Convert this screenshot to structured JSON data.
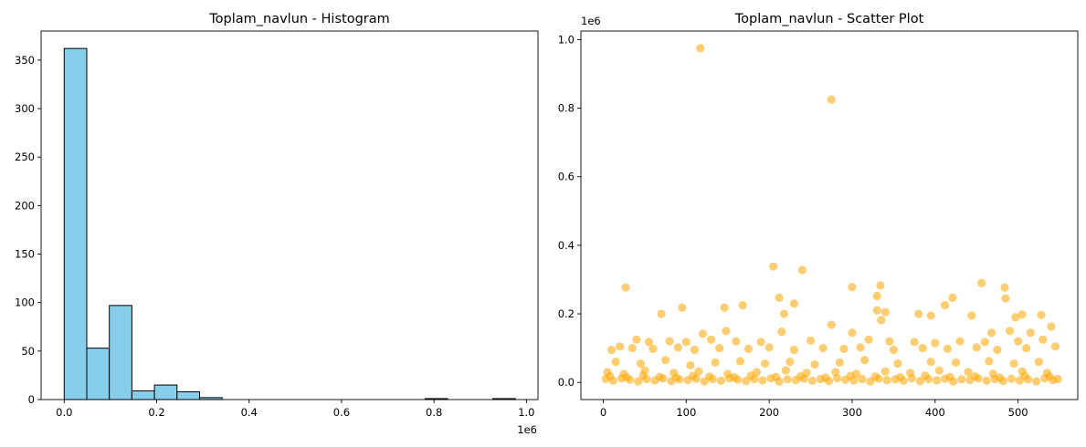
{
  "chart_data": [
    {
      "type": "bar",
      "title": "Toplam_navlun - Histogram",
      "xlabel": "",
      "ylabel": "",
      "x_offset_label": "1e6",
      "bar_color": "#87ceeb",
      "edge_color": "#000000",
      "bin_start": 0.0,
      "bin_width": 0.0488,
      "counts": [
        362,
        53,
        97,
        9,
        15,
        8,
        2,
        0,
        0,
        0,
        0,
        0,
        0,
        0,
        0,
        0,
        1,
        0,
        0,
        1
      ],
      "xlim": [
        -0.05,
        1.025
      ],
      "ylim": [
        0,
        380
      ],
      "xticks": [
        0.0,
        0.2,
        0.4,
        0.6,
        0.8,
        1.0
      ],
      "xtick_labels": [
        "0.0",
        "0.2",
        "0.4",
        "0.6",
        "0.8",
        "1.0"
      ],
      "yticks": [
        0,
        50,
        100,
        150,
        200,
        250,
        300,
        350
      ],
      "ytick_labels": [
        "0",
        "50",
        "100",
        "150",
        "200",
        "250",
        "300",
        "350"
      ],
      "grid": false
    },
    {
      "type": "scatter",
      "title": "Toplam_navlun - Scatter Plot",
      "xlabel": "",
      "ylabel": "",
      "y_offset_label": "1e6",
      "color": "#ffa500",
      "alpha": 0.55,
      "xlim": [
        -27,
        572
      ],
      "ylim": [
        -0.05,
        1.025
      ],
      "xticks": [
        0,
        100,
        200,
        300,
        400,
        500
      ],
      "xtick_labels": [
        "0",
        "100",
        "200",
        "300",
        "400",
        "500"
      ],
      "yticks": [
        0.0,
        0.2,
        0.4,
        0.6,
        0.8,
        1.0
      ],
      "ytick_labels": [
        "0.0",
        "0.2",
        "0.4",
        "0.6",
        "0.8",
        "1.0"
      ],
      "grid": false,
      "points": [
        [
          117,
          0.975
        ],
        [
          275,
          0.825
        ],
        [
          205,
          0.338
        ],
        [
          240,
          0.328
        ],
        [
          27,
          0.277
        ],
        [
          456,
          0.29
        ],
        [
          300,
          0.278
        ],
        [
          334,
          0.283
        ],
        [
          484,
          0.277
        ],
        [
          212,
          0.247
        ],
        [
          421,
          0.247
        ],
        [
          330,
          0.252
        ],
        [
          485,
          0.245
        ],
        [
          95,
          0.218
        ],
        [
          146,
          0.218
        ],
        [
          168,
          0.225
        ],
        [
          230,
          0.23
        ],
        [
          412,
          0.225
        ],
        [
          70,
          0.2
        ],
        [
          218,
          0.2
        ],
        [
          340,
          0.205
        ],
        [
          330,
          0.21
        ],
        [
          380,
          0.2
        ],
        [
          395,
          0.195
        ],
        [
          497,
          0.19
        ],
        [
          505,
          0.198
        ],
        [
          528,
          0.197
        ],
        [
          444,
          0.195
        ],
        [
          335,
          0.182
        ],
        [
          275,
          0.168
        ],
        [
          540,
          0.163
        ],
        [
          120,
          0.142
        ],
        [
          148,
          0.15
        ],
        [
          215,
          0.148
        ],
        [
          300,
          0.145
        ],
        [
          468,
          0.145
        ],
        [
          490,
          0.15
        ],
        [
          515,
          0.145
        ],
        [
          40,
          0.125
        ],
        [
          55,
          0.118
        ],
        [
          80,
          0.12
        ],
        [
          100,
          0.118
        ],
        [
          130,
          0.125
        ],
        [
          160,
          0.12
        ],
        [
          190,
          0.118
        ],
        [
          250,
          0.122
        ],
        [
          320,
          0.125
        ],
        [
          345,
          0.12
        ],
        [
          375,
          0.118
        ],
        [
          400,
          0.115
        ],
        [
          430,
          0.12
        ],
        [
          460,
          0.118
        ],
        [
          500,
          0.12
        ],
        [
          530,
          0.125
        ],
        [
          10,
          0.095
        ],
        [
          20,
          0.105
        ],
        [
          35,
          0.1
        ],
        [
          60,
          0.098
        ],
        [
          90,
          0.102
        ],
        [
          110,
          0.095
        ],
        [
          140,
          0.1
        ],
        [
          175,
          0.098
        ],
        [
          200,
          0.102
        ],
        [
          230,
          0.095
        ],
        [
          265,
          0.1
        ],
        [
          290,
          0.098
        ],
        [
          310,
          0.102
        ],
        [
          350,
          0.095
        ],
        [
          385,
          0.1
        ],
        [
          415,
          0.098
        ],
        [
          450,
          0.102
        ],
        [
          475,
          0.095
        ],
        [
          510,
          0.1
        ],
        [
          545,
          0.105
        ],
        [
          15,
          0.06
        ],
        [
          45,
          0.055
        ],
        [
          75,
          0.065
        ],
        [
          105,
          0.05
        ],
        [
          135,
          0.058
        ],
        [
          165,
          0.062
        ],
        [
          195,
          0.055
        ],
        [
          225,
          0.06
        ],
        [
          255,
          0.052
        ],
        [
          285,
          0.058
        ],
        [
          315,
          0.065
        ],
        [
          355,
          0.055
        ],
        [
          395,
          0.06
        ],
        [
          425,
          0.058
        ],
        [
          465,
          0.062
        ],
        [
          495,
          0.055
        ],
        [
          525,
          0.06
        ],
        [
          5,
          0.03
        ],
        [
          25,
          0.025
        ],
        [
          50,
          0.035
        ],
        [
          85,
          0.028
        ],
        [
          115,
          0.032
        ],
        [
          150,
          0.025
        ],
        [
          185,
          0.03
        ],
        [
          220,
          0.035
        ],
        [
          245,
          0.028
        ],
        [
          280,
          0.03
        ],
        [
          305,
          0.025
        ],
        [
          340,
          0.032
        ],
        [
          370,
          0.028
        ],
        [
          405,
          0.035
        ],
        [
          440,
          0.03
        ],
        [
          470,
          0.025
        ],
        [
          505,
          0.032
        ],
        [
          535,
          0.028
        ],
        [
          3,
          0.01
        ],
        [
          12,
          0.005
        ],
        [
          22,
          0.012
        ],
        [
          32,
          0.008
        ],
        [
          42,
          0.003
        ],
        [
          52,
          0.01
        ],
        [
          62,
          0.006
        ],
        [
          72,
          0.012
        ],
        [
          82,
          0.004
        ],
        [
          92,
          0.009
        ],
        [
          102,
          0.007
        ],
        [
          112,
          0.011
        ],
        [
          122,
          0.003
        ],
        [
          132,
          0.01
        ],
        [
          142,
          0.005
        ],
        [
          152,
          0.012
        ],
        [
          162,
          0.008
        ],
        [
          172,
          0.004
        ],
        [
          182,
          0.01
        ],
        [
          192,
          0.006
        ],
        [
          202,
          0.012
        ],
        [
          212,
          0.003
        ],
        [
          222,
          0.009
        ],
        [
          232,
          0.007
        ],
        [
          242,
          0.011
        ],
        [
          252,
          0.005
        ],
        [
          262,
          0.01
        ],
        [
          272,
          0.004
        ],
        [
          282,
          0.012
        ],
        [
          292,
          0.008
        ],
        [
          302,
          0.006
        ],
        [
          312,
          0.01
        ],
        [
          322,
          0.003
        ],
        [
          332,
          0.011
        ],
        [
          342,
          0.007
        ],
        [
          352,
          0.009
        ],
        [
          362,
          0.005
        ],
        [
          372,
          0.012
        ],
        [
          382,
          0.004
        ],
        [
          392,
          0.01
        ],
        [
          402,
          0.006
        ],
        [
          412,
          0.011
        ],
        [
          422,
          0.003
        ],
        [
          432,
          0.009
        ],
        [
          442,
          0.007
        ],
        [
          452,
          0.012
        ],
        [
          462,
          0.005
        ],
        [
          472,
          0.01
        ],
        [
          482,
          0.004
        ],
        [
          492,
          0.011
        ],
        [
          502,
          0.006
        ],
        [
          512,
          0.009
        ],
        [
          522,
          0.003
        ],
        [
          532,
          0.012
        ],
        [
          542,
          0.007
        ],
        [
          548,
          0.01
        ],
        [
          8,
          0.018
        ],
        [
          28,
          0.015
        ],
        [
          48,
          0.02
        ],
        [
          68,
          0.016
        ],
        [
          88,
          0.014
        ],
        [
          108,
          0.019
        ],
        [
          128,
          0.017
        ],
        [
          158,
          0.015
        ],
        [
          178,
          0.02
        ],
        [
          208,
          0.016
        ],
        [
          238,
          0.018
        ],
        [
          268,
          0.014
        ],
        [
          298,
          0.019
        ],
        [
          328,
          0.017
        ],
        [
          358,
          0.015
        ],
        [
          388,
          0.02
        ],
        [
          418,
          0.016
        ],
        [
          448,
          0.018
        ],
        [
          478,
          0.014
        ],
        [
          508,
          0.019
        ],
        [
          538,
          0.017
        ]
      ]
    }
  ]
}
